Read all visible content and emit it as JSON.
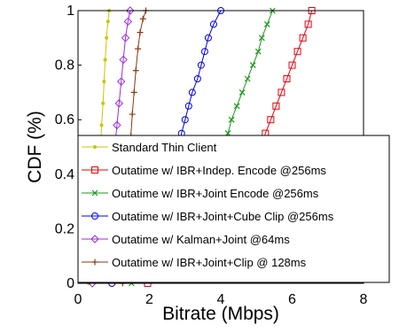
{
  "chart_data": {
    "type": "line",
    "title": "",
    "xlabel": "Bitrate (Mbps)",
    "ylabel": "CDF (%)",
    "xlim": [
      0,
      8
    ],
    "ylim": [
      0,
      1
    ],
    "xticks": [
      "0",
      "2",
      "4",
      "6",
      "8"
    ],
    "yticks": [
      "0",
      "0.2",
      "0.4",
      "0.6",
      "0.8",
      "1"
    ],
    "grid": false,
    "legend_position": "lower-center",
    "series": [
      {
        "name": "Standard Thin Client",
        "color": "#c8c800",
        "marker": "dot",
        "points": [
          [
            0.3,
            0.0
          ],
          [
            0.36,
            0.04
          ],
          [
            0.42,
            0.1
          ],
          [
            0.48,
            0.18
          ],
          [
            0.52,
            0.26
          ],
          [
            0.56,
            0.34
          ],
          [
            0.6,
            0.42
          ],
          [
            0.63,
            0.5
          ],
          [
            0.66,
            0.58
          ],
          [
            0.7,
            0.66
          ],
          [
            0.73,
            0.74
          ],
          [
            0.76,
            0.82
          ],
          [
            0.8,
            0.9
          ],
          [
            0.84,
            0.96
          ],
          [
            0.87,
            1.0
          ]
        ]
      },
      {
        "name": "Outatime w/ IBR+Indep. Encode @256ms",
        "color": "#e8000b",
        "marker": "square",
        "points": [
          [
            1.95,
            0.0
          ],
          [
            2.05,
            0.05
          ],
          [
            2.15,
            0.1
          ],
          [
            2.25,
            0.15
          ],
          [
            2.4,
            0.2
          ],
          [
            2.55,
            0.25
          ],
          [
            2.8,
            0.3
          ],
          [
            3.2,
            0.33
          ],
          [
            4.0,
            0.36
          ],
          [
            4.9,
            0.4
          ],
          [
            5.05,
            0.45
          ],
          [
            5.15,
            0.5
          ],
          [
            5.25,
            0.55
          ],
          [
            5.4,
            0.6
          ],
          [
            5.55,
            0.65
          ],
          [
            5.7,
            0.7
          ],
          [
            5.85,
            0.75
          ],
          [
            6.0,
            0.8
          ],
          [
            6.15,
            0.85
          ],
          [
            6.3,
            0.9
          ],
          [
            6.45,
            0.95
          ],
          [
            6.55,
            1.0
          ]
        ]
      },
      {
        "name": "Outatime w/ IBR+Joint Encode @256ms",
        "color": "#1a9a1a",
        "marker": "x",
        "points": [
          [
            1.5,
            0.0
          ],
          [
            1.6,
            0.05
          ],
          [
            1.7,
            0.1
          ],
          [
            1.85,
            0.15
          ],
          [
            2.0,
            0.2
          ],
          [
            2.2,
            0.25
          ],
          [
            2.6,
            0.28
          ],
          [
            3.2,
            0.32
          ],
          [
            3.9,
            0.36
          ],
          [
            4.05,
            0.42
          ],
          [
            4.1,
            0.5
          ],
          [
            4.2,
            0.55
          ],
          [
            4.3,
            0.6
          ],
          [
            4.45,
            0.65
          ],
          [
            4.6,
            0.7
          ],
          [
            4.75,
            0.75
          ],
          [
            4.9,
            0.8
          ],
          [
            5.05,
            0.85
          ],
          [
            5.15,
            0.9
          ],
          [
            5.3,
            0.95
          ],
          [
            5.45,
            1.0
          ]
        ]
      },
      {
        "name": "Outatime w/ IBR+Joint+Cube Clip @256ms",
        "color": "#0000e6",
        "marker": "circle",
        "points": [
          [
            0.95,
            0.0
          ],
          [
            1.0,
            0.05
          ],
          [
            1.1,
            0.1
          ],
          [
            1.2,
            0.15
          ],
          [
            1.4,
            0.2
          ],
          [
            1.7,
            0.24
          ],
          [
            2.2,
            0.28
          ],
          [
            2.6,
            0.32
          ],
          [
            2.75,
            0.4
          ],
          [
            2.8,
            0.48
          ],
          [
            2.9,
            0.55
          ],
          [
            3.0,
            0.6
          ],
          [
            3.1,
            0.65
          ],
          [
            3.2,
            0.7
          ],
          [
            3.35,
            0.75
          ],
          [
            3.45,
            0.8
          ],
          [
            3.55,
            0.85
          ],
          [
            3.65,
            0.9
          ],
          [
            3.8,
            0.95
          ],
          [
            4.0,
            1.0
          ]
        ]
      },
      {
        "name": "Outatime w/ Kalman+Joint @64ms",
        "color": "#9c2ae6",
        "marker": "diamond",
        "points": [
          [
            0.4,
            0.0
          ],
          [
            0.48,
            0.06
          ],
          [
            0.58,
            0.12
          ],
          [
            0.7,
            0.18
          ],
          [
            0.8,
            0.26
          ],
          [
            0.9,
            0.34
          ],
          [
            0.97,
            0.42
          ],
          [
            1.03,
            0.5
          ],
          [
            1.09,
            0.58
          ],
          [
            1.15,
            0.66
          ],
          [
            1.21,
            0.74
          ],
          [
            1.27,
            0.82
          ],
          [
            1.33,
            0.9
          ],
          [
            1.4,
            0.96
          ],
          [
            1.46,
            1.0
          ]
        ]
      },
      {
        "name": "Outatime w/ IBR+Joint+Clip @ 128ms",
        "color": "#8b3a10",
        "marker": "plus",
        "points": [
          [
            1.25,
            0.0
          ],
          [
            1.3,
            0.06
          ],
          [
            1.35,
            0.14
          ],
          [
            1.38,
            0.22
          ],
          [
            1.4,
            0.3
          ],
          [
            1.42,
            0.38
          ],
          [
            1.45,
            0.46
          ],
          [
            1.48,
            0.54
          ],
          [
            1.52,
            0.62
          ],
          [
            1.57,
            0.7
          ],
          [
            1.62,
            0.78
          ],
          [
            1.68,
            0.86
          ],
          [
            1.74,
            0.92
          ],
          [
            1.82,
            0.97
          ],
          [
            1.9,
            1.0
          ]
        ]
      }
    ]
  }
}
